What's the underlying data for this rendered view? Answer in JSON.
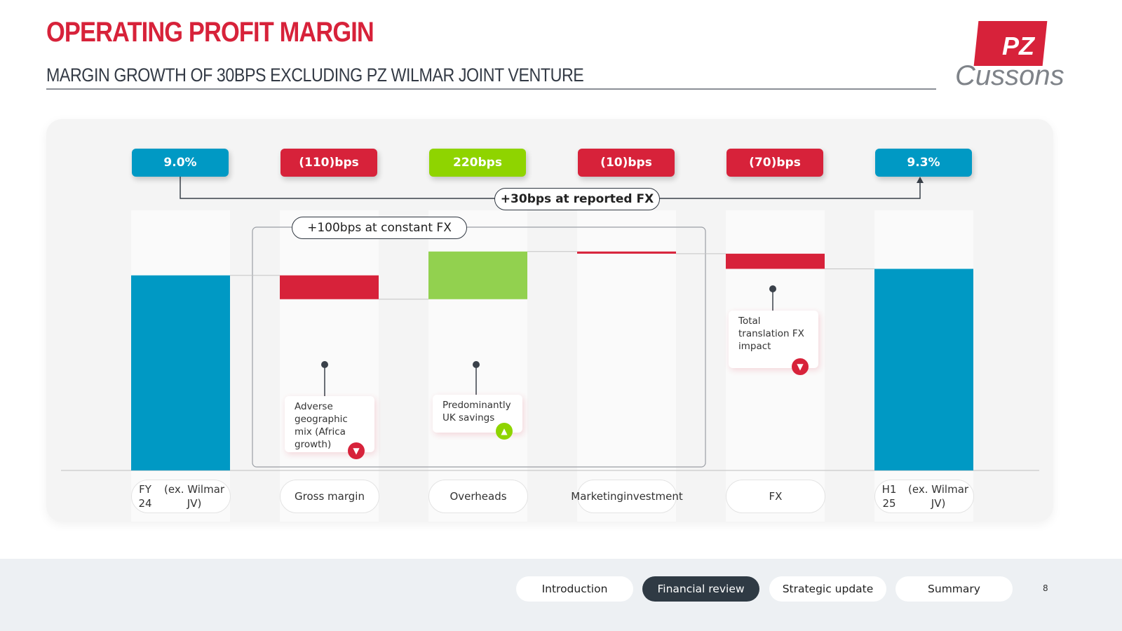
{
  "title": "OPERATING PROFIT MARGIN",
  "subtitle": "MARGIN GROWTH OF 30BPS EXCLUDING PZ WILMAR JOINT VENTURE",
  "logo": {
    "mark": "PZ",
    "word": "Cussons"
  },
  "chart_data": {
    "type": "waterfall",
    "unit": "% / bps",
    "categories": [
      "FY 24\n(ex. Wilmar JV)",
      "Gross margin",
      "Overheads",
      "Marketing\ninvestment",
      "FX",
      "H1 25\n(ex. Wilmar JV)"
    ],
    "category_labels": [
      [
        "FY 24",
        "(ex. Wilmar JV)"
      ],
      [
        "Gross margin"
      ],
      [
        "Overheads"
      ],
      [
        "Marketing",
        "investment"
      ],
      [
        "FX"
      ],
      [
        "H1 25",
        "(ex. Wilmar JV)"
      ]
    ],
    "values": [
      9.0,
      -1.1,
      2.2,
      -0.1,
      -0.7,
      9.3
    ],
    "kinds": [
      "total",
      "delta",
      "delta",
      "delta",
      "delta",
      "total"
    ],
    "value_labels": [
      "9.0%",
      "(110)bps",
      "220bps",
      "(10)bps",
      "(70)bps",
      "9.3%"
    ],
    "ylim": [
      0,
      12.0
    ],
    "colors": {
      "total": "#0099c4",
      "negative": "#d7223a",
      "positive": "#92d14f",
      "badge_positive": "#8fd400"
    },
    "annotations": [
      {
        "text": "+30bps at reported FX"
      },
      {
        "text": "+100bps at constant FX"
      }
    ],
    "notes": [
      {
        "text": "Adverse geographic mix (Africa growth)",
        "lines": [
          "Adverse",
          "geographic",
          "mix (Africa",
          "growth)"
        ],
        "direction": "down"
      },
      {
        "text": "Predominantly UK savings",
        "lines": [
          "Predominantly",
          "UK savings"
        ],
        "direction": "up"
      },
      {
        "text": "Total translation FX impact",
        "lines": [
          "Total",
          "translation FX",
          "impact"
        ],
        "direction": "down"
      }
    ]
  },
  "nav": {
    "items": [
      "Introduction",
      "Financial review",
      "Strategic update",
      "Summary"
    ],
    "active": "Financial review",
    "page": "8"
  },
  "icons": {
    "down": "triangle-down-icon",
    "up": "triangle-up-icon"
  }
}
